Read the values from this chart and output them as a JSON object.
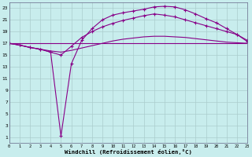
{
  "xlabel": "Windchill (Refroidissement éolien,°C)",
  "background_color": "#c8eded",
  "grid_color": "#aacccc",
  "line_color": "#880088",
  "x": [
    0,
    1,
    2,
    3,
    4,
    5,
    6,
    7,
    8,
    9,
    10,
    11,
    12,
    13,
    14,
    15,
    16,
    17,
    18,
    19,
    20,
    21,
    22,
    23
  ],
  "line1": [
    17,
    17,
    17,
    17,
    17,
    17,
    17,
    17,
    17,
    17,
    17,
    17,
    17,
    17,
    17,
    17,
    17,
    17,
    17,
    17,
    17,
    17,
    17,
    17
  ],
  "line2": [
    17,
    16.7,
    16.3,
    16.0,
    15.7,
    15.5,
    15.8,
    16.2,
    16.6,
    17.0,
    17.4,
    17.7,
    17.9,
    18.1,
    18.2,
    18.2,
    18.1,
    18.0,
    17.8,
    17.6,
    17.4,
    17.2,
    17.1,
    17.0
  ],
  "line3": [
    17,
    16.7,
    16.3,
    16.0,
    15.5,
    1.2,
    13.5,
    17.5,
    19.5,
    21.0,
    21.8,
    22.2,
    22.5,
    22.8,
    23.2,
    23.3,
    23.2,
    22.7,
    22.0,
    21.2,
    20.5,
    19.5,
    18.5,
    17.3
  ],
  "line4": [
    17,
    16.7,
    16.3,
    16.0,
    15.5,
    15.0,
    16.5,
    18.0,
    19.0,
    19.8,
    20.4,
    20.9,
    21.3,
    21.7,
    22.0,
    21.8,
    21.5,
    21.0,
    20.5,
    20.0,
    19.5,
    19.0,
    18.5,
    17.5
  ],
  "ylim": [
    0,
    24
  ],
  "xlim": [
    0,
    23
  ],
  "yticks": [
    1,
    3,
    5,
    7,
    9,
    11,
    13,
    15,
    17,
    19,
    21,
    23
  ],
  "xticks": [
    0,
    1,
    2,
    3,
    4,
    5,
    6,
    7,
    8,
    9,
    10,
    11,
    12,
    13,
    14,
    15,
    16,
    17,
    18,
    19,
    20,
    21,
    22,
    23
  ]
}
